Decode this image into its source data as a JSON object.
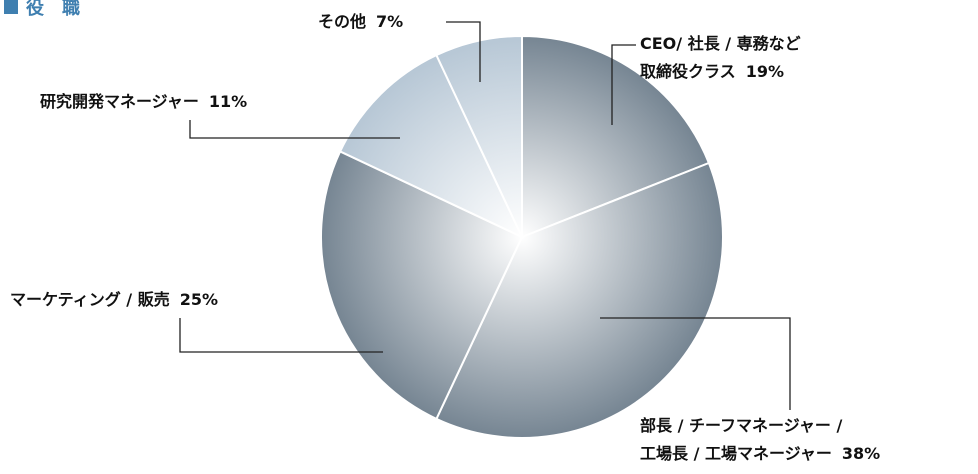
{
  "chart_data": {
    "type": "pie",
    "title": "役　職",
    "categories": [
      "CEO/ 社長 / 専務など\n取締役クラス",
      "部長 / チーフマネージャー /\n工場長 / 工場マネージャー",
      "マーケティング / 販売",
      "研究開発マネージャー",
      "その他"
    ],
    "values": [
      19,
      38,
      25,
      11,
      7
    ],
    "value_labels": [
      "19%",
      "38%",
      "25%",
      "11%",
      "7%"
    ],
    "colors": [
      "#6f7f8d",
      "#6f7f8d",
      "#6f7f8d",
      "#b3c4d3",
      "#b3c4d3"
    ]
  }
}
